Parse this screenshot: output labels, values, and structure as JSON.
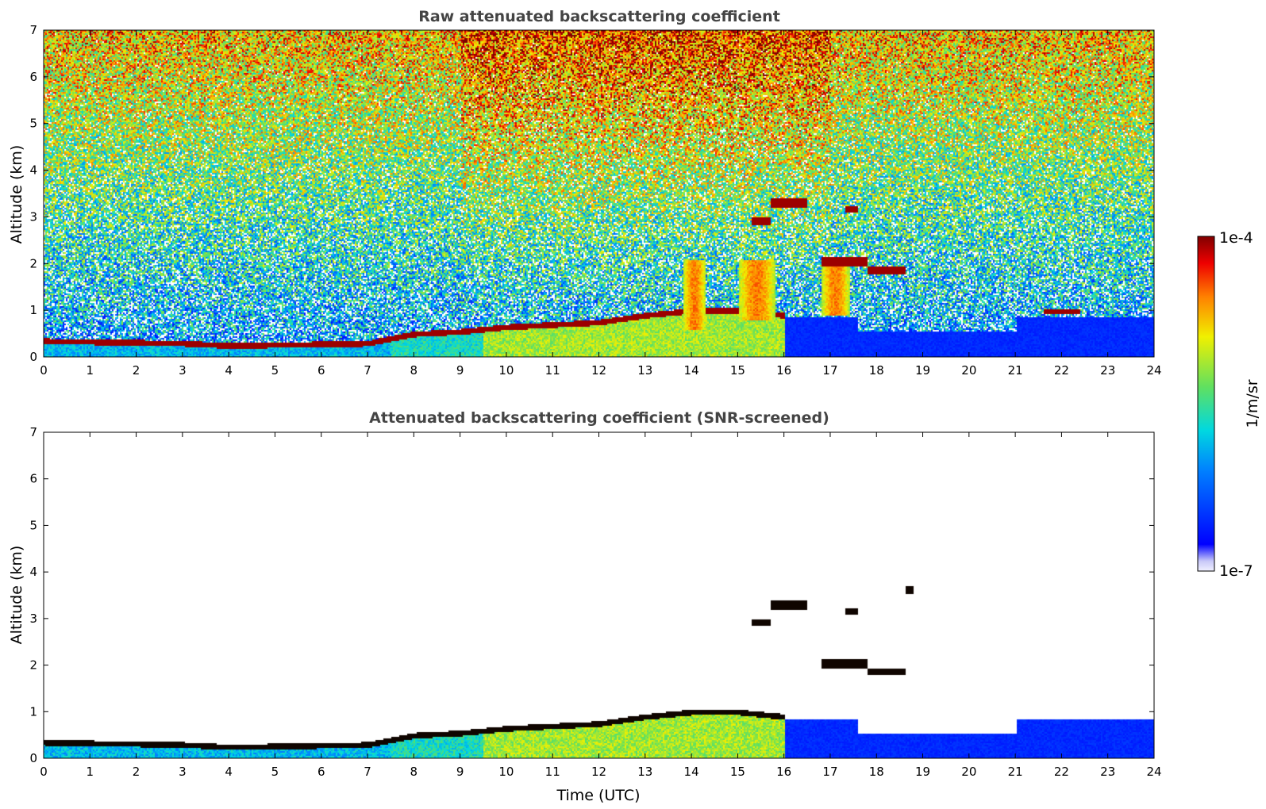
{
  "chart_data": [
    {
      "type": "heatmap",
      "title": "Raw attenuated backscattering coefficient",
      "xlabel": "",
      "ylabel": "Altitude (km)",
      "x_ticks": [
        "0",
        "1",
        "2",
        "3",
        "4",
        "5",
        "6",
        "7",
        "8",
        "9",
        "10",
        "11",
        "12",
        "13",
        "14",
        "15",
        "16",
        "17",
        "18",
        "19",
        "20",
        "21",
        "22",
        "23",
        "24"
      ],
      "y_ticks": [
        "0",
        "1",
        "2",
        "3",
        "4",
        "5",
        "6",
        "7"
      ],
      "xlim": [
        0,
        24
      ],
      "ylim": [
        0,
        7
      ],
      "mode": "raw",
      "features": [
        {
          "kind": "boundary_layer_top",
          "time_utc": [
            0,
            3,
            4,
            7,
            8,
            9,
            10,
            11,
            12,
            13,
            14,
            15,
            16
          ],
          "altitude_km": [
            0.35,
            0.3,
            0.25,
            0.3,
            0.5,
            0.55,
            0.65,
            0.7,
            0.75,
            0.9,
            1.0,
            1.0,
            0.9
          ]
        },
        {
          "kind": "cloud",
          "time_utc": [
            15.7,
            16.5
          ],
          "altitude_km": [
            3.2,
            3.4
          ]
        },
        {
          "kind": "cloud",
          "time_utc": [
            15.3,
            15.7
          ],
          "altitude_km": [
            2.85,
            3.0
          ]
        },
        {
          "kind": "cloud",
          "time_utc": [
            17.3,
            17.6
          ],
          "altitude_km": [
            3.1,
            3.25
          ]
        },
        {
          "kind": "cloud",
          "time_utc": [
            16.8,
            17.8
          ],
          "altitude_km": [
            1.95,
            2.15
          ]
        },
        {
          "kind": "cloud",
          "time_utc": [
            17.8,
            18.6
          ],
          "altitude_km": [
            1.8,
            1.95
          ]
        },
        {
          "kind": "cloud",
          "time_utc": [
            21.6,
            22.4
          ],
          "altitude_km": [
            0.95,
            1.05
          ]
        },
        {
          "kind": "aerosol_plume",
          "time_utc": [
            13.8,
            14.3
          ],
          "altitude_km": [
            0.6,
            2.1
          ]
        },
        {
          "kind": "aerosol_plume",
          "time_utc": [
            15.0,
            15.8
          ],
          "altitude_km": [
            0.8,
            2.1
          ]
        },
        {
          "kind": "aerosol_plume",
          "time_utc": [
            16.8,
            17.4
          ],
          "altitude_km": [
            0.9,
            2.1
          ]
        }
      ]
    },
    {
      "type": "heatmap",
      "title": "Attenuated backscattering coefficient (SNR-screened)",
      "xlabel": "Time (UTC)",
      "ylabel": "Altitude (km)",
      "x_ticks": [
        "0",
        "1",
        "2",
        "3",
        "4",
        "5",
        "6",
        "7",
        "8",
        "9",
        "10",
        "11",
        "12",
        "13",
        "14",
        "15",
        "16",
        "17",
        "18",
        "19",
        "20",
        "21",
        "22",
        "23",
        "24"
      ],
      "y_ticks": [
        "0",
        "1",
        "2",
        "3",
        "4",
        "5",
        "6",
        "7"
      ],
      "xlim": [
        0,
        24
      ],
      "ylim": [
        0,
        7
      ],
      "mode": "screened",
      "features": [
        {
          "kind": "boundary_layer_top",
          "time_utc": [
            0,
            3,
            4,
            7,
            8,
            9,
            10,
            11,
            12,
            13,
            14,
            15,
            16
          ],
          "altitude_km": [
            0.35,
            0.3,
            0.25,
            0.3,
            0.5,
            0.55,
            0.65,
            0.7,
            0.75,
            0.9,
            1.0,
            1.0,
            0.9
          ]
        },
        {
          "kind": "cloud",
          "time_utc": [
            15.7,
            16.5
          ],
          "altitude_km": [
            3.2,
            3.4
          ]
        },
        {
          "kind": "cloud",
          "time_utc": [
            15.3,
            15.7
          ],
          "altitude_km": [
            2.85,
            3.0
          ]
        },
        {
          "kind": "cloud",
          "time_utc": [
            17.3,
            17.6
          ],
          "altitude_km": [
            3.1,
            3.25
          ]
        },
        {
          "kind": "cloud",
          "time_utc": [
            16.8,
            17.8
          ],
          "altitude_km": [
            1.95,
            2.15
          ]
        },
        {
          "kind": "cloud",
          "time_utc": [
            17.8,
            18.6
          ],
          "altitude_km": [
            1.8,
            1.95
          ]
        },
        {
          "kind": "cloud",
          "time_utc": [
            18.6,
            18.8
          ],
          "altitude_km": [
            3.55,
            3.7
          ]
        }
      ]
    }
  ],
  "colorbar": {
    "min_label": "1e-7",
    "max_label": "1e-4",
    "unit_label": "1/m/sr",
    "colormap": "jet",
    "scale": "log"
  }
}
